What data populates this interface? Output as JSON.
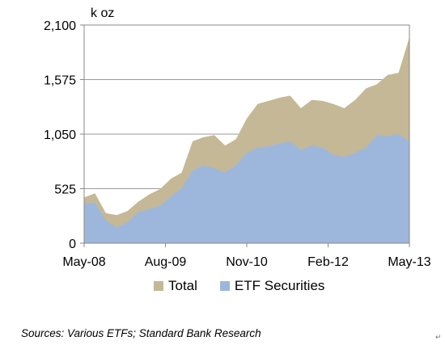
{
  "chart_data": {
    "type": "area",
    "title": "",
    "unit_label": "k oz",
    "xlabel": "",
    "ylabel": "",
    "ylim": [
      0,
      2100
    ],
    "yticks": [
      0,
      525,
      1050,
      1575,
      2100
    ],
    "ytick_labels": [
      "0",
      "525",
      "1,050",
      "1,575",
      "2,100"
    ],
    "xtick_labels": [
      "May-08",
      "Aug-09",
      "Nov-10",
      "Feb-12",
      "May-13"
    ],
    "grid": true,
    "stacked": false,
    "x": [
      "May-08",
      "Jul-08",
      "Sep-08",
      "Nov-08",
      "Jan-09",
      "Mar-09",
      "May-09",
      "Jul-09",
      "Sep-09",
      "Nov-09",
      "Jan-10",
      "Mar-10",
      "May-10",
      "Jul-10",
      "Sep-10",
      "Nov-10",
      "Jan-11",
      "Mar-11",
      "May-11",
      "Jul-11",
      "Sep-11",
      "Nov-11",
      "Jan-12",
      "Mar-12",
      "May-12",
      "Jul-12",
      "Sep-12",
      "Nov-12",
      "Jan-13",
      "Mar-13",
      "May-13"
    ],
    "series": [
      {
        "name": "Total",
        "color": "#c4b896",
        "values": [
          440,
          480,
          290,
          270,
          310,
          400,
          470,
          520,
          620,
          680,
          980,
          1020,
          1040,
          940,
          1000,
          1200,
          1340,
          1370,
          1400,
          1420,
          1300,
          1380,
          1370,
          1340,
          1300,
          1380,
          1490,
          1530,
          1620,
          1640,
          1980
        ]
      },
      {
        "name": "ETF Securities",
        "color": "#9db7dc",
        "values": [
          380,
          390,
          220,
          150,
          200,
          300,
          330,
          360,
          450,
          530,
          700,
          750,
          720,
          680,
          750,
          870,
          920,
          930,
          960,
          980,
          900,
          940,
          920,
          850,
          830,
          870,
          920,
          1040,
          1030,
          1050,
          980
        ]
      }
    ],
    "legend_position": "bottom",
    "source": "Sources: Various ETFs; Standard Bank Research"
  }
}
